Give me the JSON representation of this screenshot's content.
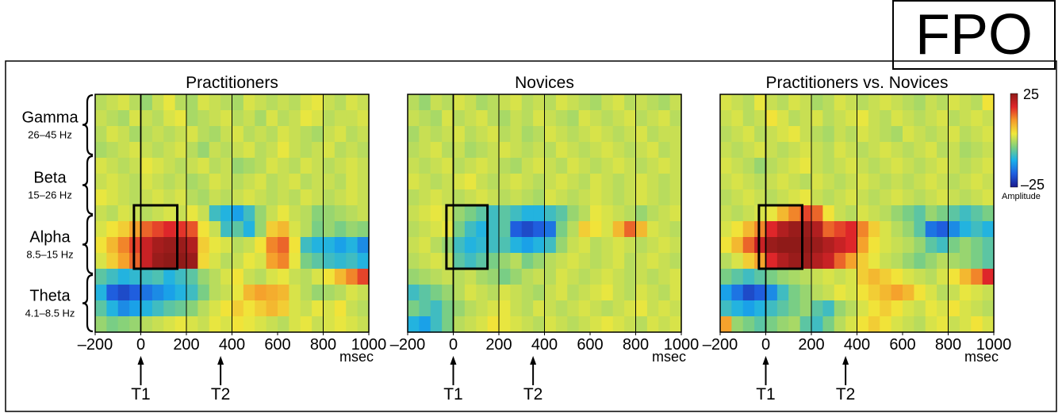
{
  "fpo_label": "FPO",
  "bands": [
    {
      "name": "Gamma",
      "range": "26–45 Hz"
    },
    {
      "name": "Beta",
      "range": "15–26 Hz"
    },
    {
      "name": "Alpha",
      "range": "8.5–15 Hz"
    },
    {
      "name": "Theta",
      "range": "4.1–8.5 Hz"
    }
  ],
  "colorbar": {
    "max_label": "25",
    "min_label": "–25",
    "label": "Amplitude",
    "stops": [
      "#1b1b8f",
      "#1f5fe0",
      "#19b0ea",
      "#7fd07f",
      "#f1e83a",
      "#f59a2a",
      "#e0262a",
      "#8f1a18"
    ]
  },
  "markers": [
    {
      "label": "T1",
      "ms": 0
    },
    {
      "label": "T2",
      "ms": 350
    }
  ],
  "x_unit_label": "msec",
  "chart_data": [
    {
      "type": "heatmap",
      "title": "Practitioners",
      "x_ticks": [
        -200,
        0,
        200,
        400,
        600,
        800,
        1000
      ],
      "x_tick_labels": [
        "–200",
        "0",
        "200",
        "400",
        "600",
        "800",
        "1000"
      ],
      "xlim": [
        -200,
        1000
      ],
      "vertical_lines_ms": [
        0,
        200,
        400,
        800
      ],
      "value_range": [
        -25,
        25
      ],
      "highlight_box": {
        "ms_start": -30,
        "ms_end": 160,
        "band": "Alpha"
      },
      "values": [
        [
          0,
          1,
          2,
          0,
          -2,
          1,
          3,
          0,
          -1,
          2,
          1,
          0,
          -1,
          2,
          1,
          0,
          1,
          0,
          2,
          3,
          1,
          0,
          2,
          1
        ],
        [
          1,
          0,
          -1,
          2,
          1,
          0,
          2,
          3,
          -1,
          0,
          1,
          2,
          0,
          1,
          -1,
          2,
          0,
          1,
          3,
          2,
          0,
          1,
          1,
          2
        ],
        [
          0,
          2,
          1,
          -1,
          0,
          1,
          0,
          1,
          2,
          0,
          -1,
          1,
          2,
          0,
          1,
          0,
          2,
          1,
          0,
          -1,
          1,
          2,
          0,
          1
        ],
        [
          -1,
          0,
          1,
          2,
          1,
          0,
          1,
          2,
          0,
          -2,
          1,
          0,
          1,
          2,
          0,
          1,
          3,
          1,
          0,
          1,
          2,
          0,
          1,
          0
        ],
        [
          2,
          1,
          0,
          1,
          3,
          2,
          1,
          0,
          1,
          2,
          0,
          1,
          -2,
          -1,
          0,
          2,
          1,
          0,
          2,
          1,
          0,
          1,
          2,
          1
        ],
        [
          1,
          2,
          1,
          0,
          2,
          1,
          0,
          1,
          -1,
          0,
          2,
          1,
          0,
          1,
          2,
          0,
          1,
          2,
          0,
          1,
          1,
          0,
          2,
          1
        ],
        [
          3,
          2,
          1,
          0,
          1,
          2,
          1,
          2,
          0,
          -1,
          1,
          0,
          1,
          2,
          1,
          0,
          1,
          0,
          2,
          1,
          0,
          1,
          2,
          1
        ],
        [
          1,
          0,
          2,
          1,
          0,
          1,
          2,
          1,
          3,
          1,
          -8,
          -10,
          -12,
          -8,
          -2,
          1,
          3,
          1,
          0,
          -3,
          -2,
          -1,
          0,
          1
        ],
        [
          2,
          4,
          6,
          10,
          14,
          16,
          18,
          17,
          15,
          4,
          1,
          -8,
          -6,
          -10,
          -2,
          6,
          8,
          2,
          0,
          -4,
          -2,
          -4,
          -2,
          -3
        ],
        [
          4,
          8,
          12,
          16,
          20,
          23,
          24,
          24,
          22,
          6,
          3,
          2,
          0,
          1,
          4,
          12,
          14,
          4,
          -8,
          -10,
          -10,
          -12,
          -10,
          -14
        ],
        [
          2,
          6,
          10,
          14,
          20,
          24,
          25,
          25,
          24,
          5,
          2,
          0,
          1,
          3,
          2,
          10,
          12,
          3,
          -4,
          -6,
          -8,
          -9,
          -8,
          -10
        ],
        [
          -6,
          -8,
          -10,
          -9,
          -8,
          -7,
          -10,
          -8,
          -6,
          -2,
          0,
          2,
          4,
          1,
          0,
          2,
          3,
          1,
          0,
          2,
          4,
          8,
          12,
          16
        ],
        [
          -10,
          -18,
          -20,
          -18,
          -16,
          -14,
          -12,
          -10,
          -8,
          -4,
          0,
          1,
          3,
          8,
          10,
          9,
          8,
          2,
          0,
          -2,
          -1,
          0,
          2,
          1
        ],
        [
          -6,
          -10,
          -14,
          -12,
          -10,
          -8,
          -6,
          -5,
          -3,
          0,
          2,
          4,
          6,
          4,
          6,
          8,
          6,
          2,
          1,
          3,
          2,
          4,
          1,
          0
        ],
        [
          -2,
          -4,
          -3,
          -2,
          0,
          1,
          2,
          3,
          2,
          1,
          3,
          2,
          4,
          3,
          2,
          1,
          0,
          2,
          3,
          1,
          2,
          3,
          2,
          1
        ]
      ]
    },
    {
      "type": "heatmap",
      "title": "Novices",
      "x_ticks": [
        -200,
        0,
        200,
        400,
        600,
        800,
        1000
      ],
      "x_tick_labels": [
        "–200",
        "0",
        "200",
        "400",
        "600",
        "800",
        "1000"
      ],
      "xlim": [
        -200,
        1000
      ],
      "vertical_lines_ms": [
        0,
        200,
        400,
        800
      ],
      "value_range": [
        -25,
        25
      ],
      "highlight_box": {
        "ms_start": -30,
        "ms_end": 150,
        "band": "Alpha"
      },
      "values": [
        [
          0,
          -2,
          1,
          0,
          2,
          1,
          -1,
          0,
          1,
          2,
          0,
          1,
          0,
          2,
          1,
          0,
          -1,
          1,
          2,
          0,
          1,
          0,
          -1,
          1
        ],
        [
          1,
          0,
          -1,
          2,
          0,
          1,
          2,
          0,
          -1,
          1,
          0,
          2,
          1,
          0,
          -1,
          2,
          1,
          0,
          1,
          2,
          0,
          1,
          2,
          0
        ],
        [
          -1,
          1,
          0,
          1,
          2,
          0,
          1,
          2,
          0,
          1,
          -1,
          0,
          2,
          1,
          0,
          1,
          2,
          1,
          0,
          1,
          2,
          0,
          1,
          1
        ],
        [
          0,
          1,
          2,
          0,
          1,
          -1,
          0,
          1,
          2,
          1,
          0,
          1,
          0,
          2,
          1,
          0,
          1,
          2,
          1,
          0,
          1,
          2,
          0,
          1
        ],
        [
          1,
          0,
          1,
          2,
          0,
          1,
          2,
          1,
          0,
          -1,
          1,
          2,
          1,
          0,
          2,
          1,
          0,
          1,
          2,
          1,
          0,
          1,
          2,
          1
        ],
        [
          2,
          1,
          0,
          1,
          2,
          3,
          1,
          0,
          1,
          2,
          1,
          0,
          1,
          2,
          1,
          0,
          2,
          1,
          0,
          1,
          2,
          1,
          0,
          1
        ],
        [
          0,
          1,
          2,
          1,
          0,
          1,
          2,
          1,
          0,
          1,
          0,
          -1,
          2,
          1,
          0,
          1,
          2,
          1,
          0,
          1,
          2,
          1,
          0,
          1
        ],
        [
          1,
          2,
          3,
          2,
          -2,
          -4,
          -6,
          -8,
          -6,
          -8,
          -10,
          -10,
          -8,
          -6,
          -2,
          0,
          3,
          2,
          1,
          0,
          -2,
          0,
          1,
          2
        ],
        [
          0,
          1,
          2,
          3,
          -4,
          -8,
          -10,
          -8,
          -6,
          -18,
          -20,
          -18,
          -16,
          -4,
          0,
          6,
          4,
          2,
          8,
          14,
          8,
          2,
          1,
          0
        ],
        [
          1,
          2,
          0,
          -2,
          -8,
          -10,
          -9,
          -8,
          -7,
          -10,
          -12,
          -10,
          -8,
          -2,
          1,
          2,
          0,
          1,
          2,
          1,
          0,
          1,
          2,
          1
        ],
        [
          0,
          1,
          2,
          1,
          -6,
          -8,
          -6,
          -4,
          -2,
          0,
          -4,
          -2,
          0,
          1,
          2,
          1,
          0,
          1,
          2,
          0,
          1,
          2,
          1,
          0
        ],
        [
          -2,
          -1,
          0,
          1,
          0,
          1,
          -1,
          -2,
          -4,
          -2,
          0,
          1,
          0,
          2,
          1,
          0,
          1,
          2,
          1,
          0,
          1,
          0,
          1,
          2
        ],
        [
          -8,
          -6,
          -4,
          -2,
          0,
          2,
          1,
          0,
          2,
          1,
          0,
          -1,
          1,
          2,
          0,
          1,
          2,
          3,
          1,
          0,
          2,
          1,
          0,
          2
        ],
        [
          -4,
          -6,
          -8,
          -4,
          -2,
          0,
          1,
          2,
          3,
          1,
          0,
          2,
          1,
          0,
          1,
          2,
          1,
          0,
          1,
          2,
          3,
          1,
          2,
          1
        ],
        [
          -10,
          -12,
          -8,
          -4,
          0,
          1,
          2,
          4,
          3,
          2,
          1,
          0,
          2,
          1,
          0,
          1,
          2,
          3,
          2,
          1,
          0,
          2,
          1,
          2
        ]
      ]
    },
    {
      "type": "heatmap",
      "title": "Practitioners vs. Novices",
      "x_ticks": [
        -200,
        0,
        200,
        400,
        600,
        800,
        1000
      ],
      "x_tick_labels": [
        "–200",
        "0",
        "200",
        "400",
        "600",
        "800",
        "1000"
      ],
      "xlim": [
        -200,
        1000
      ],
      "vertical_lines_ms": [
        0,
        200,
        400,
        800
      ],
      "value_range": [
        -25,
        25
      ],
      "highlight_box": {
        "ms_start": -30,
        "ms_end": 160,
        "band": "Alpha"
      },
      "values": [
        [
          2,
          1,
          0,
          3,
          1,
          0,
          2,
          1,
          -1,
          0,
          2,
          1,
          0,
          1,
          2,
          1,
          0,
          -1,
          1,
          0,
          2,
          1,
          0,
          4
        ],
        [
          1,
          2,
          0,
          1,
          4,
          2,
          0,
          1,
          2,
          0,
          1,
          2,
          3,
          1,
          0,
          2,
          1,
          0,
          1,
          2,
          0,
          1,
          2,
          1
        ],
        [
          0,
          1,
          2,
          0,
          1,
          2,
          3,
          1,
          0,
          -1,
          1,
          0,
          2,
          1,
          0,
          -1,
          2,
          1,
          0,
          1,
          2,
          0,
          1,
          2
        ],
        [
          1,
          0,
          1,
          2,
          1,
          0,
          1,
          2,
          1,
          0,
          2,
          1,
          0,
          1,
          2,
          1,
          0,
          1,
          2,
          0,
          1,
          -1,
          0,
          1
        ],
        [
          2,
          1,
          0,
          -2,
          0,
          1,
          2,
          3,
          1,
          0,
          1,
          2,
          1,
          0,
          1,
          2,
          1,
          0,
          1,
          2,
          1,
          0,
          1,
          2
        ],
        [
          1,
          2,
          1,
          0,
          1,
          2,
          1,
          0,
          2,
          1,
          0,
          1,
          2,
          1,
          0,
          1,
          0,
          1,
          2,
          1,
          0,
          1,
          2,
          1
        ],
        [
          0,
          1,
          2,
          1,
          0,
          1,
          2,
          3,
          1,
          0,
          1,
          2,
          1,
          0,
          1,
          2,
          1,
          0,
          1,
          2,
          1,
          0,
          1,
          2
        ],
        [
          1,
          0,
          1,
          2,
          3,
          8,
          12,
          16,
          14,
          4,
          1,
          0,
          2,
          1,
          0,
          -2,
          -4,
          -6,
          -2,
          -4,
          -6,
          -8,
          -6,
          -4
        ],
        [
          2,
          4,
          8,
          12,
          18,
          22,
          24,
          24,
          22,
          14,
          16,
          18,
          12,
          6,
          2,
          0,
          -2,
          -6,
          -16,
          -18,
          -14,
          -10,
          -8,
          -10
        ],
        [
          4,
          8,
          14,
          20,
          24,
          25,
          25,
          25,
          24,
          22,
          20,
          18,
          10,
          4,
          2,
          1,
          0,
          -2,
          -6,
          -8,
          -4,
          -2,
          -4,
          -6
        ],
        [
          0,
          2,
          6,
          10,
          18,
          22,
          24,
          24,
          22,
          20,
          14,
          10,
          6,
          3,
          1,
          0,
          -2,
          -4,
          -2,
          0,
          -1,
          -2,
          -4,
          -6
        ],
        [
          -4,
          -6,
          -8,
          -6,
          -4,
          -2,
          -1,
          0,
          1,
          2,
          1,
          2,
          6,
          8,
          6,
          4,
          2,
          1,
          0,
          2,
          4,
          8,
          12,
          18
        ],
        [
          -12,
          -16,
          -20,
          -18,
          -14,
          -8,
          -4,
          -2,
          0,
          1,
          3,
          2,
          4,
          6,
          8,
          10,
          8,
          4,
          2,
          0,
          1,
          3,
          2,
          1
        ],
        [
          -8,
          -10,
          -12,
          -10,
          -8,
          -6,
          -4,
          -2,
          -6,
          -8,
          -2,
          0,
          2,
          4,
          6,
          4,
          2,
          1,
          3,
          2,
          4,
          2,
          1,
          0
        ],
        [
          10,
          -2,
          -4,
          -6,
          -4,
          -2,
          -1,
          -6,
          -8,
          -4,
          0,
          2,
          4,
          6,
          4,
          2,
          1,
          0,
          2,
          3,
          1,
          2,
          4,
          2
        ]
      ]
    }
  ]
}
